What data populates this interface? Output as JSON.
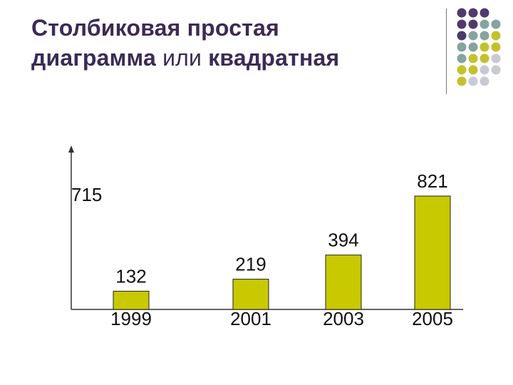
{
  "title": {
    "line1": "Столбиковая простая",
    "line2_bold": "диаграмма",
    "line2_normal": " или ",
    "line2_bold2": "квадратная"
  },
  "colors": {
    "title": "#3b2b55",
    "bar_fill": "#c9c900",
    "dot_purple": "#4e3a6c",
    "dot_teal": "#86a3a0",
    "dot_yellow": "#c2c22c",
    "dot_gray": "#c9c9d4"
  },
  "decor_dots": [
    [
      "purple",
      "purple",
      "purple",
      ""
    ],
    [
      "purple",
      "purple",
      "teal",
      "teal"
    ],
    [
      "purple",
      "teal",
      "teal",
      "yellow"
    ],
    [
      "teal",
      "teal",
      "yellow",
      "yellow"
    ],
    [
      "teal",
      "yellow",
      "yellow",
      "gray"
    ],
    [
      "yellow",
      "yellow",
      "gray",
      "gray"
    ],
    [
      "yellow",
      "gray",
      "gray",
      ""
    ]
  ],
  "chart_data": {
    "type": "bar",
    "categories": [
      "1999",
      "2001",
      "2003",
      "2005"
    ],
    "values": [
      132,
      219,
      394,
      821
    ],
    "value_labels": [
      "132",
      "219",
      "394",
      "821"
    ],
    "y_annotation": "715",
    "ylim": [
      0,
      900
    ],
    "grid": false,
    "legend": "none"
  }
}
